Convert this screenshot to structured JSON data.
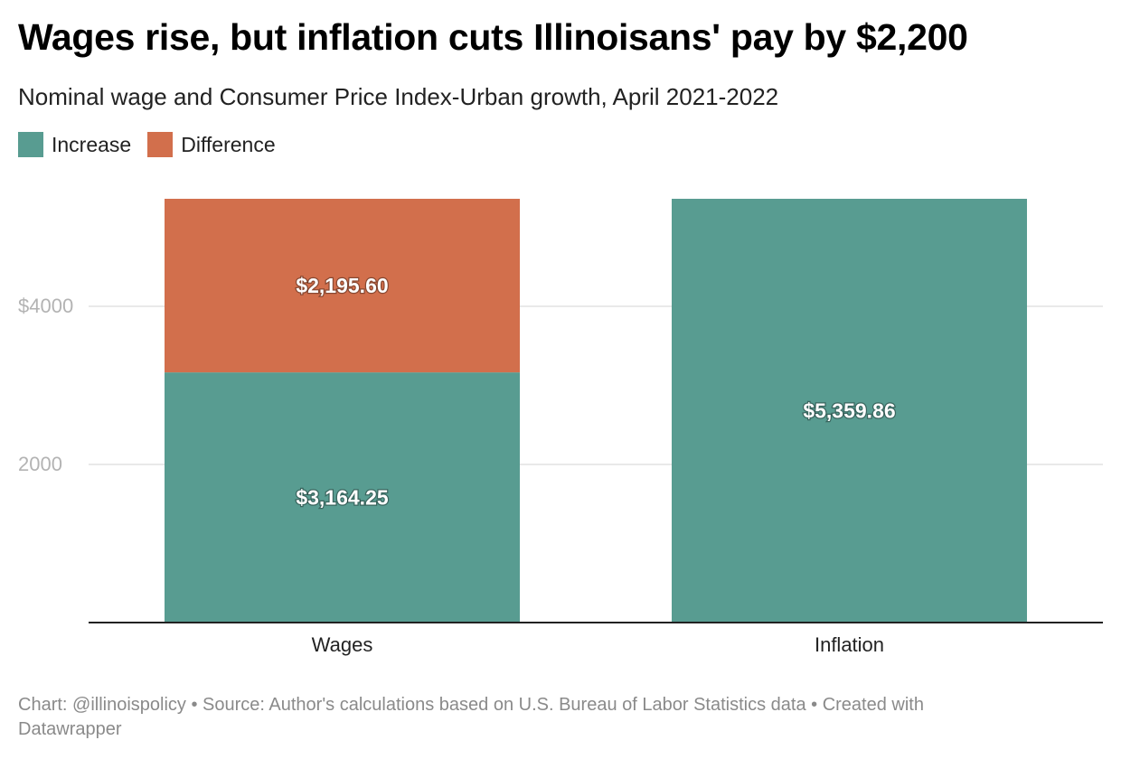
{
  "title": "Wages rise, but inflation cuts Illinoisans' pay by $2,200",
  "subtitle": "Nominal wage and Consumer Price Index-Urban growth, April 2021-2022",
  "legend": [
    {
      "label": "Increase",
      "color": "#589c91"
    },
    {
      "label": "Difference",
      "color": "#d26f4c"
    }
  ],
  "footer": "Chart: @illinoispolicy • Source: Author's calculations based on U.S. Bureau of Labor Statistics data • Created with Datawrapper",
  "chart_data": {
    "type": "bar",
    "stacked": true,
    "categories": [
      "Wages",
      "Inflation"
    ],
    "series": [
      {
        "name": "Increase",
        "color": "#589c91",
        "values": [
          3164.25,
          5359.86
        ],
        "labels": [
          "$3,164.25",
          "$5,359.86"
        ]
      },
      {
        "name": "Difference",
        "color": "#d26f4c",
        "values": [
          2195.6,
          null
        ],
        "labels": [
          "$2,195.60",
          ""
        ]
      }
    ],
    "yticks": [
      2000,
      4000
    ],
    "ytick_labels": [
      "2000",
      "$4000"
    ],
    "ylim": [
      0,
      5360
    ],
    "grid": true,
    "legend_position": "top-left"
  }
}
